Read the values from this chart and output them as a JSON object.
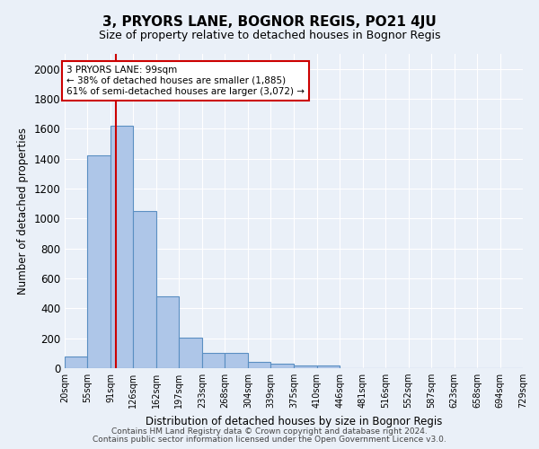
{
  "title": "3, PRYORS LANE, BOGNOR REGIS, PO21 4JU",
  "subtitle": "Size of property relative to detached houses in Bognor Regis",
  "xlabel": "Distribution of detached houses by size in Bognor Regis",
  "ylabel": "Number of detached properties",
  "footnote1": "Contains HM Land Registry data © Crown copyright and database right 2024.",
  "footnote2": "Contains public sector information licensed under the Open Government Licence v3.0.",
  "bar_edges": [
    20,
    55,
    91,
    126,
    162,
    197,
    233,
    268,
    304,
    339,
    375,
    410,
    446,
    481,
    516,
    552,
    587,
    623,
    658,
    694,
    729
  ],
  "bar_heights": [
    80,
    1420,
    1620,
    1050,
    480,
    205,
    100,
    100,
    45,
    30,
    20,
    20,
    0,
    0,
    0,
    0,
    0,
    0,
    0,
    0
  ],
  "bar_color": "#aec6e8",
  "bar_edge_color": "#5a8fc2",
  "bar_linewidth": 0.8,
  "vline_x": 99,
  "vline_color": "#cc0000",
  "annotation_text": "3 PRYORS LANE: 99sqm\n← 38% of detached houses are smaller (1,885)\n61% of semi-detached houses are larger (3,072) →",
  "annotation_box_color": "#ffffff",
  "annotation_box_edge": "#cc0000",
  "ylim": [
    0,
    2100
  ],
  "yticks": [
    0,
    200,
    400,
    600,
    800,
    1000,
    1200,
    1400,
    1600,
    1800,
    2000
  ],
  "bg_color": "#eaf0f8",
  "plot_bg_color": "#eaf0f8",
  "grid_color": "#ffffff",
  "tick_labels": [
    "20sqm",
    "55sqm",
    "91sqm",
    "126sqm",
    "162sqm",
    "197sqm",
    "233sqm",
    "268sqm",
    "304sqm",
    "339sqm",
    "375sqm",
    "410sqm",
    "446sqm",
    "481sqm",
    "516sqm",
    "552sqm",
    "587sqm",
    "623sqm",
    "658sqm",
    "694sqm",
    "729sqm"
  ]
}
